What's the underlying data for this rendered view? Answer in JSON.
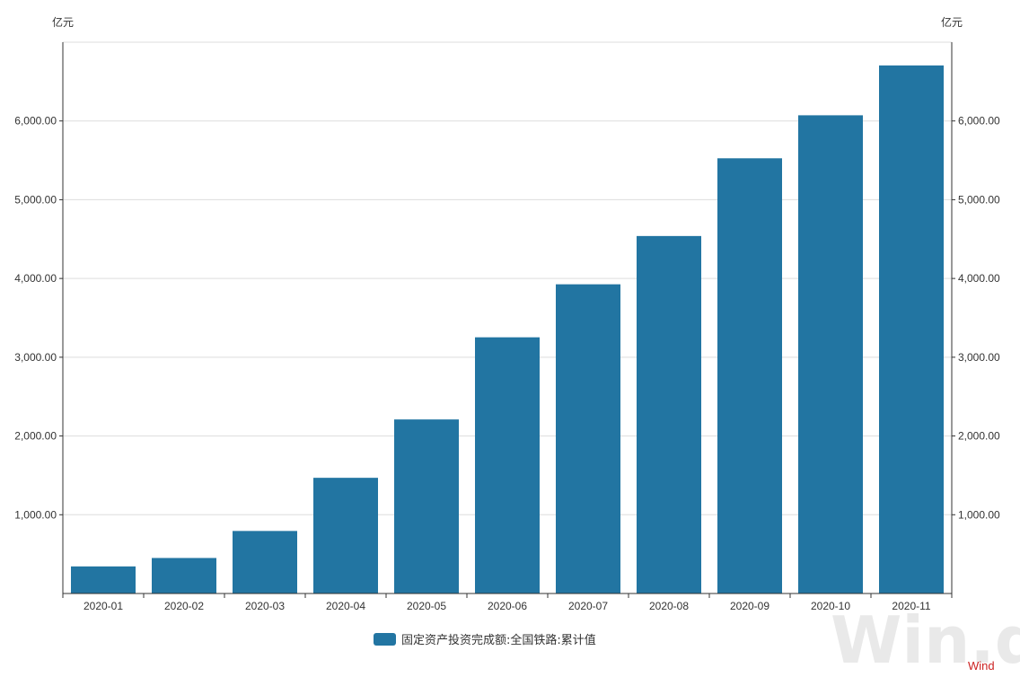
{
  "chart_data": {
    "type": "bar",
    "categories": [
      "2020-01",
      "2020-02",
      "2020-03",
      "2020-04",
      "2020-05",
      "2020-06",
      "2020-07",
      "2020-08",
      "2020-09",
      "2020-10",
      "2020-11"
    ],
    "series": [
      {
        "name": "固定资产投资完成额:全国铁路:累计值",
        "values": [
          344,
          451,
          794,
          1469,
          2210,
          3253,
          3926,
          4539,
          5526,
          6072,
          6705
        ]
      }
    ],
    "left_unit": "亿元",
    "right_unit": "亿元",
    "ylim": [
      0,
      7000
    ],
    "yticks": [
      1000,
      2000,
      3000,
      4000,
      5000,
      6000
    ],
    "ytick_labels": [
      "1,000.00",
      "2,000.00",
      "3,000.00",
      "4,000.00",
      "5,000.00",
      "6,000.00"
    ],
    "grid": true,
    "legend_position": "bottom-center",
    "bar_color": "#2275a2"
  },
  "watermark": {
    "large": "Win.d",
    "small": "Wind"
  }
}
